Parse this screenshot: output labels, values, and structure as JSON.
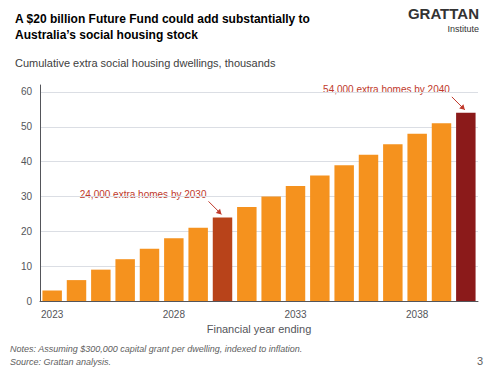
{
  "chart_data": {
    "type": "bar",
    "title": "A $20 billion Future Fund could add substantially to Australia’s social housing stock",
    "subtitle": "Cumulative extra social housing dwellings, thousands",
    "x_label": "Financial year ending",
    "categories": [
      "2023",
      null,
      null,
      null,
      null,
      "2028",
      null,
      null,
      null,
      null,
      "2033",
      null,
      null,
      null,
      null,
      "2038",
      null,
      null
    ],
    "values": [
      3,
      6,
      9,
      12,
      15,
      18,
      21,
      24,
      27,
      30,
      33,
      36,
      39,
      42,
      45,
      48,
      51,
      54
    ],
    "colors": [
      "#F5921E",
      "#F5921E",
      "#F5921E",
      "#F5921E",
      "#F5921E",
      "#F5921E",
      "#F5921E",
      "#B8431A",
      "#F5921E",
      "#F5921E",
      "#F5921E",
      "#F5921E",
      "#F5921E",
      "#F5921E",
      "#F5921E",
      "#F5921E",
      "#F5921E",
      "#8B1A1A"
    ],
    "ylim": [
      0,
      62
    ],
    "yticks": [
      0,
      10,
      20,
      30,
      40,
      50,
      60
    ],
    "grid": true,
    "annotations": [
      {
        "text": "24,000 extra homes by 2030",
        "index": 7,
        "value": 24,
        "color": "#C0392B"
      },
      {
        "text": "54,000 extra homes by 2040",
        "index": 17,
        "value": 54,
        "color": "#C0392B"
      }
    ],
    "notes": "Notes: Assuming $300,000 capital grant per dwelling, indexed to inflation.",
    "source": "Source: Grattan analysis.",
    "logo": [
      "GRATTAN",
      "Institute"
    ],
    "page_number": "3"
  }
}
